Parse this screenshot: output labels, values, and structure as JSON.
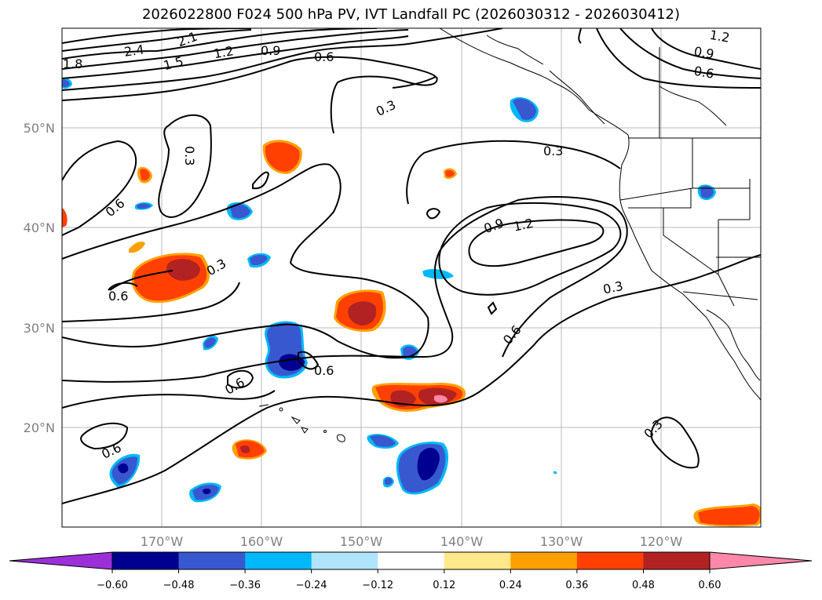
{
  "title": "2026022800 F024 500 hPa PV, IVT Landfall PC (2026030312 - 2026030412)",
  "lat_labels": [
    "50°N",
    "40°N",
    "30°N",
    "20°N"
  ],
  "lon_labels": [
    "170°W",
    "160°W",
    "150°W",
    "140°W",
    "130°W",
    "120°W"
  ],
  "contour_levels": [
    "2.4",
    "2.1",
    "1.8",
    "1.5",
    "1.2",
    "0.9",
    "0.6",
    "0.3",
    "0.3",
    "0.3",
    "0.6",
    "0.6",
    "0.6",
    "0.6",
    "0.6",
    "0.9",
    "1.2",
    "0.3",
    "0.6",
    "0.3",
    "1.2",
    "0.9",
    "0.6",
    "0.3"
  ],
  "colorbar": {
    "ticks": [
      "−0.60",
      "−0.48",
      "−0.36",
      "−0.24",
      "−0.12",
      "0.12",
      "0.24",
      "0.36",
      "0.48",
      "0.60"
    ],
    "colors": {
      "under": "#9b30d9",
      "bins": [
        "#000090",
        "#3858d0",
        "#00b8f8",
        "#b0e4fa",
        "#ffffff",
        "#ffe88a",
        "#ffa000",
        "#ff4000",
        "#b22222",
        "#ff88aa"
      ],
      "over": "#ff88aa"
    }
  }
}
